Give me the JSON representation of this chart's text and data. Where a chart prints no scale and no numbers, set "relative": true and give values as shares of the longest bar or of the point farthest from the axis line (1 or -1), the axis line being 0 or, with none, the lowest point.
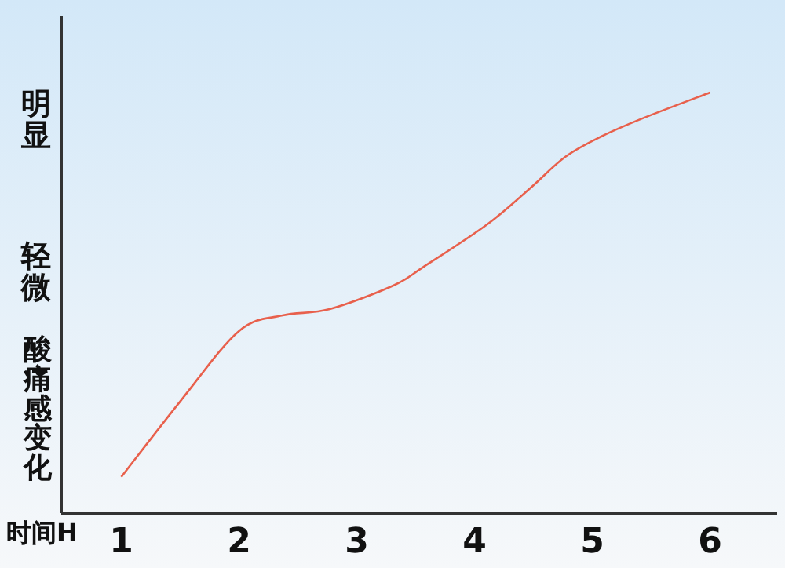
{
  "chart_data": {
    "type": "line",
    "relative": true,
    "xlabel": "时间H",
    "ylabel": "酸痛感变化",
    "annotations": [
      "明显",
      "轻微"
    ],
    "xlim": [
      0.49,
      6.57
    ],
    "xticks": [
      1,
      2,
      3,
      4,
      5,
      6
    ],
    "series": [
      {
        "color": "#e8604c",
        "x": [
          1,
          1.51,
          2.0,
          2.37,
          2.77,
          3.31,
          3.57,
          4.11,
          4.47,
          4.77,
          5.08,
          5.44,
          6
        ],
        "values": [
          0.086,
          0.269,
          0.433,
          0.47,
          0.485,
          0.541,
          0.586,
          0.687,
          0.772,
          0.847,
          0.896,
          0.94,
          1
        ]
      }
    ]
  }
}
